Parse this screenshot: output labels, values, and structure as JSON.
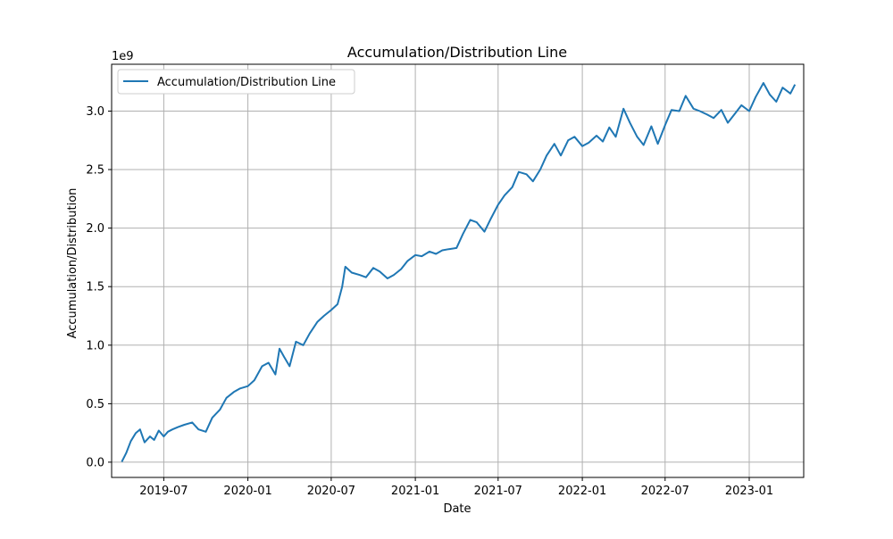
{
  "chart_data": {
    "type": "line",
    "title": "Accumulation/Distribution Line",
    "xlabel": "Date",
    "ylabel": "Accumulation/Distribution",
    "y_offset_label": "1e9",
    "xlim": [
      "2019-03-09",
      "2023-04-30"
    ],
    "ylim": [
      -0.13,
      3.4
    ],
    "grid": true,
    "legend_position": "upper left",
    "x_ticks": [
      "2019-07-01",
      "2020-01-01",
      "2020-07-01",
      "2021-01-01",
      "2021-07-01",
      "2022-01-01",
      "2022-07-01",
      "2023-01-01"
    ],
    "x_tick_labels": [
      "2019-07",
      "2020-01",
      "2020-07",
      "2021-01",
      "2021-07",
      "2022-01",
      "2022-07",
      "2023-01"
    ],
    "y_ticks": [
      0.0,
      0.5,
      1.0,
      1.5,
      2.0,
      2.5,
      3.0
    ],
    "y_tick_labels": [
      "0.0",
      "0.5",
      "1.0",
      "1.5",
      "2.0",
      "2.5",
      "3.0"
    ],
    "series": [
      {
        "name": "Accumulation/Distribution Line",
        "color": "#1f77b4",
        "x": [
          "2019-04-01",
          "2019-04-10",
          "2019-04-20",
          "2019-05-01",
          "2019-05-10",
          "2019-05-20",
          "2019-06-01",
          "2019-06-10",
          "2019-06-20",
          "2019-07-01",
          "2019-07-10",
          "2019-07-20",
          "2019-08-01",
          "2019-08-15",
          "2019-09-01",
          "2019-09-15",
          "2019-10-01",
          "2019-10-15",
          "2019-11-01",
          "2019-11-15",
          "2019-12-01",
          "2019-12-15",
          "2020-01-01",
          "2020-01-15",
          "2020-02-01",
          "2020-02-15",
          "2020-03-01",
          "2020-03-10",
          "2020-03-20",
          "2020-04-01",
          "2020-04-15",
          "2020-05-01",
          "2020-05-15",
          "2020-06-01",
          "2020-06-15",
          "2020-07-01",
          "2020-07-15",
          "2020-07-25",
          "2020-08-01",
          "2020-08-15",
          "2020-09-01",
          "2020-09-15",
          "2020-10-01",
          "2020-10-15",
          "2020-11-01",
          "2020-11-15",
          "2020-12-01",
          "2020-12-15",
          "2021-01-01",
          "2021-01-15",
          "2021-02-01",
          "2021-02-15",
          "2021-03-01",
          "2021-03-15",
          "2021-04-01",
          "2021-04-15",
          "2021-05-01",
          "2021-05-15",
          "2021-06-01",
          "2021-06-15",
          "2021-07-01",
          "2021-07-15",
          "2021-08-01",
          "2021-08-15",
          "2021-09-01",
          "2021-09-15",
          "2021-10-01",
          "2021-10-15",
          "2021-11-01",
          "2021-11-15",
          "2021-12-01",
          "2021-12-15",
          "2022-01-01",
          "2022-01-15",
          "2022-02-01",
          "2022-02-15",
          "2022-03-01",
          "2022-03-15",
          "2022-04-01",
          "2022-04-15",
          "2022-05-01",
          "2022-05-15",
          "2022-06-01",
          "2022-06-15",
          "2022-07-01",
          "2022-07-15",
          "2022-08-01",
          "2022-08-15",
          "2022-09-01",
          "2022-09-15",
          "2022-10-01",
          "2022-10-15",
          "2022-11-01",
          "2022-11-15",
          "2022-12-01",
          "2022-12-15",
          "2023-01-01",
          "2023-01-15",
          "2023-02-01",
          "2023-02-15",
          "2023-03-01",
          "2023-03-15",
          "2023-04-01",
          "2023-04-10"
        ],
        "values": [
          0.01,
          0.08,
          0.18,
          0.25,
          0.28,
          0.17,
          0.22,
          0.19,
          0.27,
          0.22,
          0.26,
          0.28,
          0.3,
          0.32,
          0.34,
          0.28,
          0.26,
          0.38,
          0.45,
          0.55,
          0.6,
          0.63,
          0.65,
          0.7,
          0.82,
          0.85,
          0.75,
          0.97,
          0.9,
          0.82,
          1.03,
          1.0,
          1.1,
          1.2,
          1.25,
          1.3,
          1.35,
          1.5,
          1.67,
          1.62,
          1.6,
          1.58,
          1.66,
          1.63,
          1.57,
          1.6,
          1.65,
          1.72,
          1.77,
          1.76,
          1.8,
          1.78,
          1.81,
          1.82,
          1.83,
          1.95,
          2.07,
          2.05,
          1.97,
          2.08,
          2.2,
          2.28,
          2.35,
          2.48,
          2.46,
          2.4,
          2.5,
          2.62,
          2.72,
          2.62,
          2.75,
          2.78,
          2.7,
          2.73,
          2.79,
          2.74,
          2.86,
          2.78,
          3.02,
          2.9,
          2.78,
          2.71,
          2.87,
          2.72,
          2.88,
          3.01,
          3.0,
          3.13,
          3.02,
          3.0,
          2.97,
          2.94,
          3.01,
          2.9,
          2.98,
          3.05,
          3.0,
          3.12,
          3.24,
          3.14,
          3.08,
          3.2,
          3.15,
          3.22
        ]
      }
    ]
  }
}
